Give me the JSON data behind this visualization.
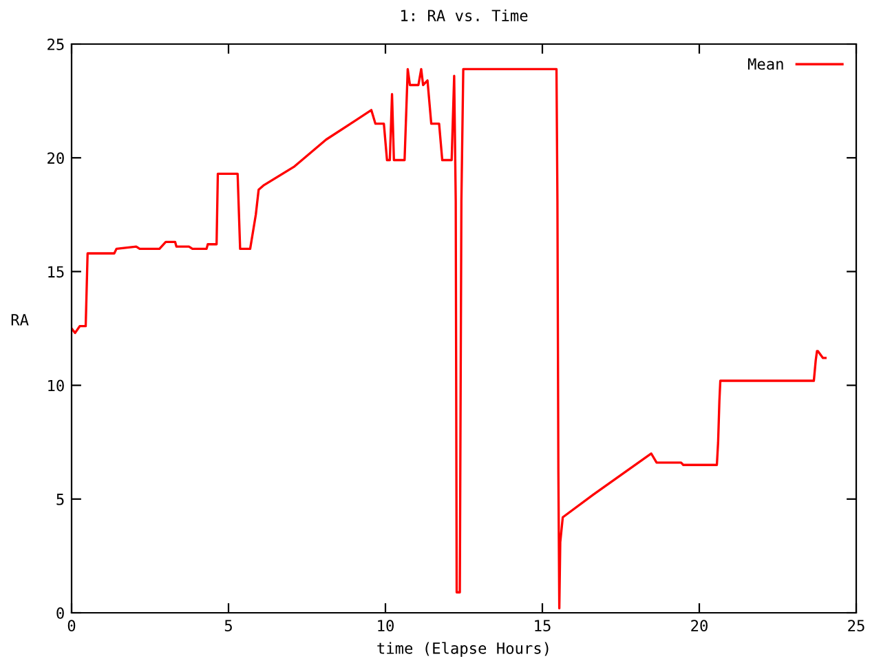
{
  "chart_data": {
    "type": "line",
    "title": "1: RA vs. Time",
    "xlabel": "time (Elapse Hours)",
    "ylabel": "RA",
    "xlim": [
      0,
      25
    ],
    "ylim": [
      0,
      25
    ],
    "xticks": [
      0,
      5,
      10,
      15,
      20,
      25
    ],
    "yticks": [
      0,
      5,
      10,
      15,
      20,
      25
    ],
    "grid": false,
    "legend": "top right",
    "marker": "none",
    "line_style": "solid",
    "series": [
      {
        "name": "Mean",
        "color": "#ff0000",
        "x": [
          0,
          0.11,
          0.26,
          0.45,
          0.51,
          1.36,
          1.43,
          2.06,
          2.17,
          2.8,
          3.0,
          3.3,
          3.34,
          3.74,
          3.85,
          4.3,
          4.34,
          4.62,
          4.66,
          5.29,
          5.37,
          5.69,
          5.87,
          5.96,
          6.13,
          7.08,
          8.11,
          9.0,
          9.55,
          9.68,
          9.95,
          10.05,
          10.14,
          10.21,
          10.27,
          10.61,
          10.71,
          10.78,
          11.05,
          11.14,
          11.2,
          11.34,
          11.46,
          11.71,
          11.81,
          12.11,
          12.19,
          12.24,
          12.27,
          12.37,
          12.42,
          12.48,
          15.45,
          15.48,
          15.51,
          15.54,
          15.57,
          15.65,
          16.63,
          18.47,
          18.64,
          19.42,
          19.49,
          20.56,
          20.6,
          20.64,
          20.67,
          23.65,
          23.71,
          23.75,
          23.78,
          23.94,
          24.02
        ],
        "values": [
          12.5,
          12.3,
          12.6,
          12.6,
          15.8,
          15.8,
          16.0,
          16.1,
          16.0,
          16.0,
          16.3,
          16.3,
          16.1,
          16.1,
          16.0,
          16.0,
          16.2,
          16.2,
          19.3,
          19.3,
          16.0,
          16.0,
          17.5,
          18.6,
          18.8,
          19.6,
          20.8,
          21.6,
          22.1,
          21.5,
          21.5,
          19.9,
          19.9,
          22.8,
          19.9,
          19.9,
          23.9,
          23.2,
          23.2,
          23.9,
          23.2,
          23.4,
          21.5,
          21.5,
          19.9,
          19.9,
          23.6,
          18.1,
          0.9,
          0.9,
          18.1,
          23.9,
          23.9,
          18.1,
          6.2,
          0.2,
          3.1,
          4.2,
          5.2,
          7.0,
          6.6,
          6.6,
          6.5,
          6.5,
          7.5,
          9.3,
          10.2,
          10.2,
          11.1,
          11.5,
          11.5,
          11.2,
          11.2
        ]
      }
    ]
  }
}
